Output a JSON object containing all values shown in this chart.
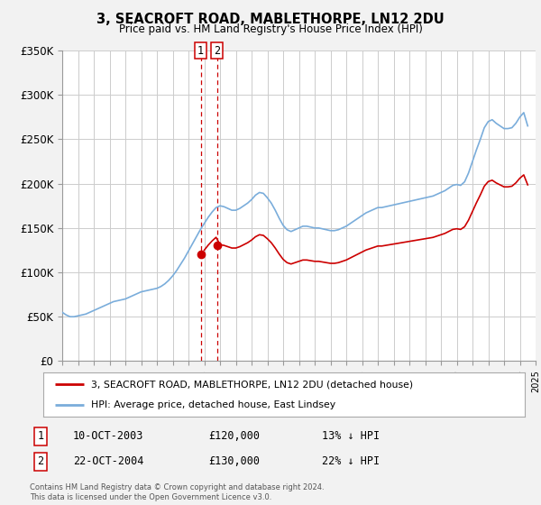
{
  "title": "3, SEACROFT ROAD, MABLETHORPE, LN12 2DU",
  "subtitle": "Price paid vs. HM Land Registry's House Price Index (HPI)",
  "bg_color": "#f2f2f2",
  "plot_bg_color": "#ffffff",
  "grid_color": "#cccccc",
  "ylim": [
    0,
    350000
  ],
  "yticks": [
    0,
    50000,
    100000,
    150000,
    200000,
    250000,
    300000,
    350000
  ],
  "ytick_labels": [
    "£0",
    "£50K",
    "£100K",
    "£150K",
    "£200K",
    "£250K",
    "£300K",
    "£350K"
  ],
  "red_line_color": "#cc0000",
  "blue_line_color": "#7aaddb",
  "vline_color": "#cc0000",
  "legend_label_red": "3, SEACROFT ROAD, MABLETHORPE, LN12 2DU (detached house)",
  "legend_label_blue": "HPI: Average price, detached house, East Lindsey",
  "transaction_1_date": "10-OCT-2003",
  "transaction_1_price": "£120,000",
  "transaction_1_hpi": "13% ↓ HPI",
  "transaction_1_year": 2003.78,
  "transaction_1_value": 120000,
  "transaction_2_date": "22-OCT-2004",
  "transaction_2_price": "£130,000",
  "transaction_2_hpi": "22% ↓ HPI",
  "transaction_2_year": 2004.81,
  "transaction_2_value": 130000,
  "footer_line1": "Contains HM Land Registry data © Crown copyright and database right 2024.",
  "footer_line2": "This data is licensed under the Open Government Licence v3.0.",
  "hpi_x": [
    1995.0,
    1995.25,
    1995.5,
    1995.75,
    1996.0,
    1996.25,
    1996.5,
    1996.75,
    1997.0,
    1997.25,
    1997.5,
    1997.75,
    1998.0,
    1998.25,
    1998.5,
    1998.75,
    1999.0,
    1999.25,
    1999.5,
    1999.75,
    2000.0,
    2000.25,
    2000.5,
    2000.75,
    2001.0,
    2001.25,
    2001.5,
    2001.75,
    2002.0,
    2002.25,
    2002.5,
    2002.75,
    2003.0,
    2003.25,
    2003.5,
    2003.75,
    2004.0,
    2004.25,
    2004.5,
    2004.75,
    2005.0,
    2005.25,
    2005.5,
    2005.75,
    2006.0,
    2006.25,
    2006.5,
    2006.75,
    2007.0,
    2007.25,
    2007.5,
    2007.75,
    2008.0,
    2008.25,
    2008.5,
    2008.75,
    2009.0,
    2009.25,
    2009.5,
    2009.75,
    2010.0,
    2010.25,
    2010.5,
    2010.75,
    2011.0,
    2011.25,
    2011.5,
    2011.75,
    2012.0,
    2012.25,
    2012.5,
    2012.75,
    2013.0,
    2013.25,
    2013.5,
    2013.75,
    2014.0,
    2014.25,
    2014.5,
    2014.75,
    2015.0,
    2015.25,
    2015.5,
    2015.75,
    2016.0,
    2016.25,
    2016.5,
    2016.75,
    2017.0,
    2017.25,
    2017.5,
    2017.75,
    2018.0,
    2018.25,
    2018.5,
    2018.75,
    2019.0,
    2019.25,
    2019.5,
    2019.75,
    2020.0,
    2020.25,
    2020.5,
    2020.75,
    2021.0,
    2021.25,
    2021.5,
    2021.75,
    2022.0,
    2022.25,
    2022.5,
    2022.75,
    2023.0,
    2023.25,
    2023.5,
    2023.75,
    2024.0,
    2024.25,
    2024.5
  ],
  "hpi_y": [
    55000,
    52000,
    50000,
    50000,
    51000,
    52000,
    53000,
    55000,
    57000,
    59000,
    61000,
    63000,
    65000,
    67000,
    68000,
    69000,
    70000,
    72000,
    74000,
    76000,
    78000,
    79000,
    80000,
    81000,
    82000,
    84000,
    87000,
    91000,
    96000,
    102000,
    109000,
    116000,
    124000,
    132000,
    140000,
    148000,
    155000,
    162000,
    168000,
    173000,
    175000,
    174000,
    172000,
    170000,
    170000,
    172000,
    175000,
    178000,
    182000,
    187000,
    190000,
    189000,
    184000,
    178000,
    170000,
    161000,
    153000,
    148000,
    146000,
    148000,
    150000,
    152000,
    152000,
    151000,
    150000,
    150000,
    149000,
    148000,
    147000,
    147000,
    148000,
    150000,
    152000,
    155000,
    158000,
    161000,
    164000,
    167000,
    169000,
    171000,
    173000,
    173000,
    174000,
    175000,
    176000,
    177000,
    178000,
    179000,
    180000,
    181000,
    182000,
    183000,
    184000,
    185000,
    186000,
    188000,
    190000,
    192000,
    195000,
    198000,
    199000,
    198000,
    202000,
    212000,
    225000,
    238000,
    250000,
    263000,
    270000,
    272000,
    268000,
    265000,
    262000,
    262000,
    263000,
    268000,
    275000,
    280000,
    265000
  ]
}
